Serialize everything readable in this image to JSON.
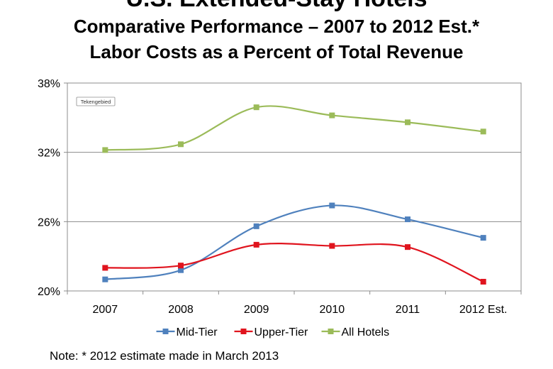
{
  "header": {
    "title": "U.S. Extended-Stay Hotels",
    "subtitle1": "Comparative Performance – 2007 to 2012 Est.*",
    "subtitle2": "Labor Costs as a Percent of Total Revenue"
  },
  "plot_label": "Tekengebied",
  "note": "Note: * 2012 estimate made in March 2013",
  "chart_data": {
    "type": "line",
    "title": "Labor Costs as a Percent of Total Revenue",
    "xlabel": "",
    "ylabel": "",
    "categories": [
      "2007",
      "2008",
      "2009",
      "2010",
      "2011",
      "2012 Est."
    ],
    "ylim": [
      20,
      38
    ],
    "yticks": [
      20,
      26,
      32,
      38
    ],
    "ytick_labels": [
      "20%",
      "26%",
      "32%",
      "38%"
    ],
    "grid": true,
    "legend_position": "bottom",
    "series": [
      {
        "name": "Mid-Tier",
        "color": "#4F81BD",
        "values": [
          21.0,
          21.8,
          25.6,
          27.4,
          26.2,
          24.6
        ]
      },
      {
        "name": "Upper-Tier",
        "color": "#E0141E",
        "values": [
          22.0,
          22.2,
          24.0,
          23.9,
          23.8,
          20.8
        ]
      },
      {
        "name": "All Hotels",
        "color": "#9BBB59",
        "values": [
          32.2,
          32.7,
          35.9,
          35.2,
          34.6,
          33.8
        ]
      }
    ]
  }
}
